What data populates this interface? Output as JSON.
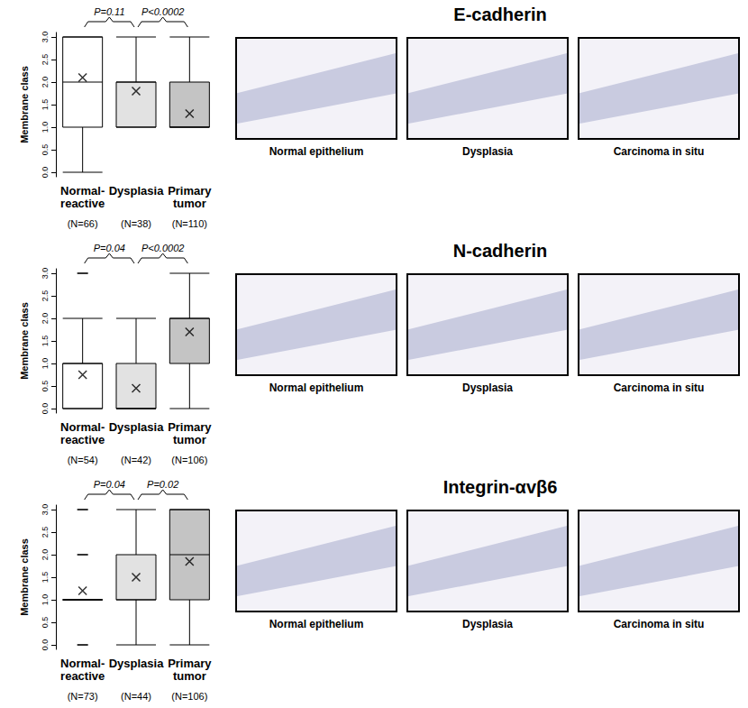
{
  "chart_data": [
    {
      "type": "boxplot",
      "title": "E-cadherin",
      "y_label": "Membrane class",
      "categories": [
        "Normal-\nreactive",
        "Dysplasia",
        "Primary\ntumor"
      ],
      "n_labels": [
        "(N=66)",
        "(N=38)",
        "(N=110)"
      ],
      "boxes": [
        [
          0,
          1,
          2,
          3,
          3
        ],
        [
          1,
          1,
          2,
          2,
          3
        ],
        [
          1,
          1,
          1,
          2,
          3
        ]
      ],
      "means": [
        2.1,
        1.8,
        1.3
      ],
      "outliers": [
        [],
        [],
        []
      ],
      "colors": [
        "#ffffff",
        "#e2e2e2",
        "#c4c4c4"
      ],
      "ylim": [
        -0.1,
        3.1
      ],
      "yticks": [
        {
          "value": 0,
          "label": "0.0"
        },
        {
          "value": 0.5,
          "label": "0.5"
        },
        {
          "value": 1,
          "label": "1.0"
        },
        {
          "value": 1.5,
          "label": "1.5"
        },
        {
          "value": 2,
          "label": "2.0"
        },
        {
          "value": 2.5,
          "label": "2.5"
        },
        {
          "value": 3,
          "label": "3.0"
        }
      ],
      "grid": false,
      "comparisons": [
        {
          "from": 0,
          "to": 1,
          "label": "P=0.11"
        },
        {
          "from": 1,
          "to": 2,
          "label": "P<0.0002"
        }
      ],
      "panel_captions": [
        "Normal epithelium",
        "Dysplasia",
        "Carcinoma in situ"
      ]
    },
    {
      "type": "boxplot",
      "title": "N-cadherin",
      "y_label": "Membrane class",
      "categories": [
        "Normal-\nreactive",
        "Dysplasia",
        "Primary\ntumor"
      ],
      "n_labels": [
        "(N=54)",
        "(N=42)",
        "(N=106)"
      ],
      "boxes": [
        [
          0,
          0,
          1,
          1,
          2
        ],
        [
          0,
          0,
          0,
          1,
          2
        ],
        [
          0,
          1,
          2,
          2,
          3
        ]
      ],
      "means": [
        0.75,
        0.45,
        1.7
      ],
      "outliers": [
        [
          3
        ],
        [],
        []
      ],
      "colors": [
        "#ffffff",
        "#e2e2e2",
        "#c4c4c4"
      ],
      "ylim": [
        -0.1,
        3.1
      ],
      "yticks": [
        {
          "value": 0,
          "label": "0.0"
        },
        {
          "value": 0.5,
          "label": "0.5"
        },
        {
          "value": 1,
          "label": "1.0"
        },
        {
          "value": 1.5,
          "label": "1.5"
        },
        {
          "value": 2,
          "label": "2.0"
        },
        {
          "value": 2.5,
          "label": "2.5"
        },
        {
          "value": 3,
          "label": "3.0"
        }
      ],
      "grid": false,
      "comparisons": [
        {
          "from": 0,
          "to": 1,
          "label": "P=0.04"
        },
        {
          "from": 1,
          "to": 2,
          "label": "P<0.0002"
        }
      ],
      "panel_captions": [
        "Normal epithelium",
        "Dysplasia",
        "Carcinoma in situ"
      ]
    },
    {
      "type": "boxplot",
      "title": "Integrin-αvβ6",
      "y_label": "Membrane class",
      "categories": [
        "Normal-\nreactive",
        "Dysplasia",
        "Primary\ntumor"
      ],
      "n_labels": [
        "(N=73)",
        "(N=44)",
        "(N=106)"
      ],
      "boxes": [
        [
          1,
          1,
          1,
          1,
          1
        ],
        [
          0,
          1,
          1,
          2,
          3
        ],
        [
          0,
          1,
          2,
          3,
          3
        ]
      ],
      "means": [
        1.2,
        1.5,
        1.85
      ],
      "outliers": [
        [
          0,
          2,
          3
        ],
        [],
        []
      ],
      "colors": [
        "#ffffff",
        "#e2e2e2",
        "#c4c4c4"
      ],
      "ylim": [
        -0.1,
        3.1
      ],
      "yticks": [
        {
          "value": 0,
          "label": "0.0"
        },
        {
          "value": 0.5,
          "label": "0.5"
        },
        {
          "value": 1,
          "label": "1.0"
        },
        {
          "value": 1.5,
          "label": "1.5"
        },
        {
          "value": 2,
          "label": "2.0"
        },
        {
          "value": 2.5,
          "label": "2.5"
        },
        {
          "value": 3,
          "label": "3.0"
        }
      ],
      "grid": false,
      "comparisons": [
        {
          "from": 0,
          "to": 1,
          "label": "P=0.04"
        },
        {
          "from": 1,
          "to": 2,
          "label": "P=0.02"
        }
      ],
      "panel_captions": [
        "Normal epithelium",
        "Dysplasia",
        "Carcinoma in situ"
      ]
    }
  ]
}
